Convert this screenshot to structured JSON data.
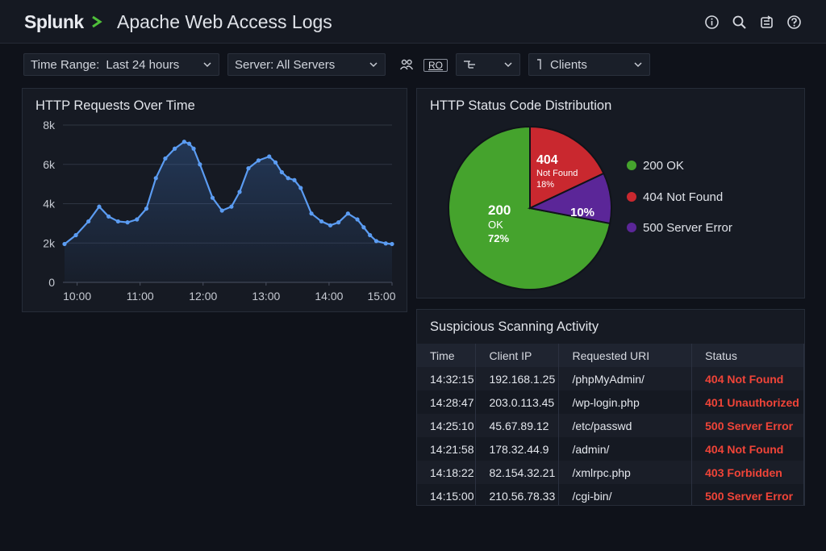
{
  "app": {
    "logo": "Splunk",
    "title": "Apache Web Access Logs"
  },
  "top_icons": [
    "info-icon",
    "search-icon",
    "export-icon",
    "help-icon"
  ],
  "toolbar": {
    "time_range_label": "Time Range:",
    "time_range_value": "Last 24 hours",
    "server_label": "Server: All Servers",
    "ro_label": "RO",
    "clients_label": "Clients"
  },
  "requests_panel": {
    "title": "HTTP Requests Over Time",
    "chart_data": {
      "type": "line",
      "y_ticks": [
        "0",
        "2k",
        "4k",
        "6k",
        "8k"
      ],
      "x_ticks": [
        "10:00",
        "11:00",
        "12:00",
        "13:00",
        "14:00",
        "15:00"
      ],
      "ylim": [
        0,
        8000
      ],
      "grid": true,
      "color": "#5b9cf2",
      "x": [
        9.8,
        9.98,
        10.18,
        10.35,
        10.5,
        10.65,
        10.8,
        10.95,
        11.1,
        11.25,
        11.4,
        11.55,
        11.7,
        11.78,
        11.85,
        11.95,
        12.15,
        12.3,
        12.45,
        12.58,
        12.72,
        12.88,
        13.05,
        13.15,
        13.25,
        13.35,
        13.45,
        13.55,
        13.72,
        13.88,
        14.02,
        14.15,
        14.3,
        14.45,
        14.55,
        14.65,
        14.75,
        14.9,
        15.0
      ],
      "y": [
        1950,
        2400,
        3100,
        3850,
        3350,
        3100,
        3050,
        3200,
        3750,
        5300,
        6300,
        6800,
        7150,
        7050,
        6800,
        6000,
        4300,
        3650,
        3850,
        4600,
        5800,
        6200,
        6400,
        6100,
        5600,
        5300,
        5200,
        4800,
        3500,
        3100,
        2900,
        3050,
        3500,
        3200,
        2800,
        2400,
        2100,
        1980,
        1950
      ]
    }
  },
  "status_panel": {
    "title": "HTTP Status Code Distribution",
    "chart_data": {
      "type": "pie",
      "slices": [
        {
          "label": "200 OK",
          "value": 72,
          "color": "#45a32d"
        },
        {
          "label": "404 Not Found",
          "value": 18,
          "color": "#c9282f"
        },
        {
          "label": "500 Server Error",
          "value": 10,
          "color": "#5b2698"
        }
      ]
    },
    "slice_labels": {
      "s200_code": "200",
      "s200_text": "OK",
      "s200_pct": "72%",
      "s404_code": "404",
      "s404_text": "Not Found",
      "s404_pct": "18%",
      "s500_pct": "10%"
    },
    "legend": [
      "200 OK",
      "404 Not Found",
      "500 Server Error"
    ]
  },
  "scan_panel": {
    "title": "Suspicious Scanning Activity",
    "columns": [
      "Time",
      "Client IP",
      "Requested URI",
      "Status"
    ],
    "rows": [
      [
        "14:32:15",
        "192.168.1.25",
        "/phpMyAdmin/",
        "404 Not Found"
      ],
      [
        "14:28:47",
        "203.0.113.45",
        "/wp-login.php",
        "401 Unauthorized"
      ],
      [
        "14:25:10",
        "45.67.89.12",
        "/etc/passwd",
        "500 Server Error"
      ],
      [
        "14:21:58",
        "178.32.44.9",
        "/admin/",
        "404 Not Found"
      ],
      [
        "14:18:22",
        "82.154.32.21",
        "/xmlrpc.php",
        "403 Forbidden"
      ],
      [
        "14:15:00",
        "210.56.78.33",
        "/cgi-bin/",
        "500 Server Error"
      ]
    ]
  }
}
